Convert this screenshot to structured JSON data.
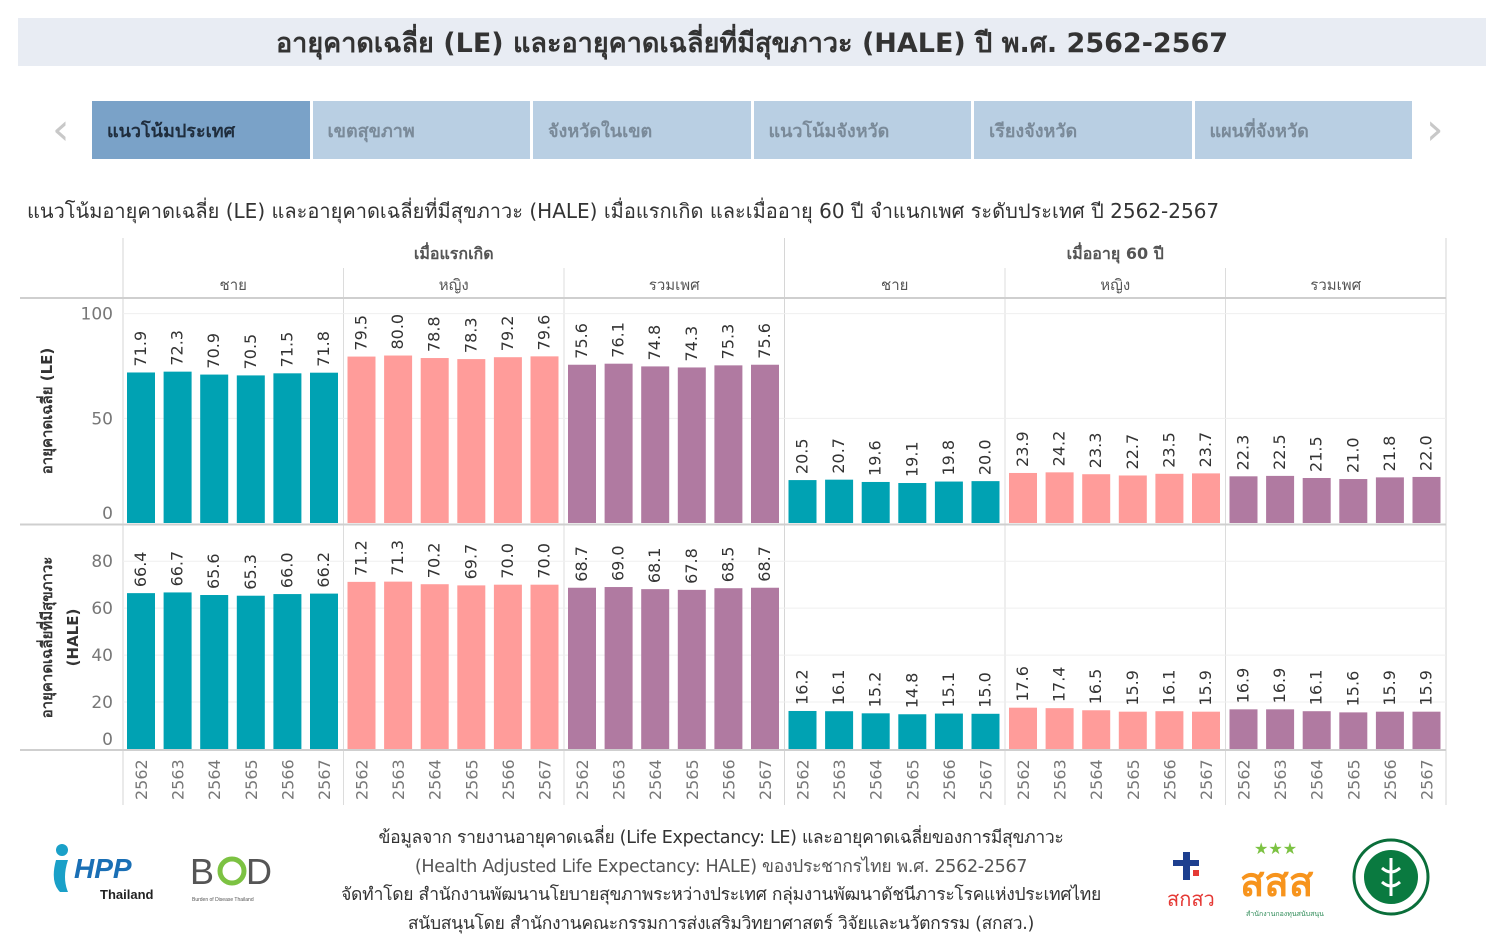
{
  "title": "อายุคาดเฉลี่ย (LE) และอายุคาดเฉลี่ยที่มีสุขภาวะ (HALE) ปี พ.ศ. 2562-2567",
  "tabs": [
    {
      "label": "แนวโน้มประเทศ",
      "active": true
    },
    {
      "label": "เขตสุขภาพ",
      "active": false
    },
    {
      "label": "จังหวัดในเขต",
      "active": false
    },
    {
      "label": "แนวโน้มจังหวัด",
      "active": false
    },
    {
      "label": "เรียงจังหวัด",
      "active": false
    },
    {
      "label": "แผนที่จังหวัด",
      "active": false
    }
  ],
  "nav": {
    "prev_icon": "chevron-left-icon",
    "next_icon": "chevron-right-icon",
    "prev": "‹",
    "next": "›"
  },
  "subtitle": "แนวโน้มอายุคาดเฉลี่ย (LE) และอายุคาดเฉลี่ยที่มีสุขภาวะ (HALE) เมื่อแรกเกิด และเมื่ออายุ 60 ปี จำแนกเพศ ระดับประเทศ ปี 2562-2567",
  "colors": {
    "ชาย": "#00a2b3",
    "หญิง": "#ff9c9a",
    "รวมเพศ": "#b07aa1"
  },
  "chart_data": {
    "type": "bar",
    "grid": true,
    "column_groups": [
      {
        "label": "เมื่อแรกเกิด",
        "sexes": [
          "ชาย",
          "หญิง",
          "รวมเพศ"
        ]
      },
      {
        "label": "เมื่ออายุ 60 ปี",
        "sexes": [
          "ชาย",
          "หญิง",
          "รวมเพศ"
        ]
      }
    ],
    "categories": [
      "2562",
      "2563",
      "2564",
      "2565",
      "2566",
      "2567"
    ],
    "rows": [
      {
        "ylabel": "อายุคาดเฉลี่ย (LE)",
        "ylabel2": "",
        "ticks": [
          0,
          50,
          100
        ],
        "ylim": [
          0,
          107
        ],
        "series": [
          {
            "age": "เมื่อแรกเกิด",
            "sex": "ชาย",
            "values": [
              71.9,
              72.3,
              70.9,
              70.5,
              71.5,
              71.8
            ]
          },
          {
            "age": "เมื่อแรกเกิด",
            "sex": "หญิง",
            "values": [
              79.5,
              80.0,
              78.8,
              78.3,
              79.2,
              79.6
            ]
          },
          {
            "age": "เมื่อแรกเกิด",
            "sex": "รวมเพศ",
            "values": [
              75.6,
              76.1,
              74.8,
              74.3,
              75.3,
              75.6
            ]
          },
          {
            "age": "เมื่ออายุ 60 ปี",
            "sex": "ชาย",
            "values": [
              20.5,
              20.7,
              19.6,
              19.1,
              19.8,
              20.0
            ]
          },
          {
            "age": "เมื่ออายุ 60 ปี",
            "sex": "หญิง",
            "values": [
              23.9,
              24.2,
              23.3,
              22.7,
              23.5,
              23.7
            ]
          },
          {
            "age": "เมื่ออายุ 60 ปี",
            "sex": "รวมเพศ",
            "values": [
              22.3,
              22.5,
              21.5,
              21.0,
              21.8,
              22.0
            ]
          }
        ]
      },
      {
        "ylabel": "อายุคาดเฉลี่ยที่มีสุขภาวะ",
        "ylabel2": "(HALE)",
        "ticks": [
          0,
          20,
          40,
          60,
          80
        ],
        "ylim": [
          0,
          95
        ],
        "series": [
          {
            "age": "เมื่อแรกเกิด",
            "sex": "ชาย",
            "values": [
              66.4,
              66.7,
              65.6,
              65.3,
              66.0,
              66.2
            ]
          },
          {
            "age": "เมื่อแรกเกิด",
            "sex": "หญิง",
            "values": [
              71.2,
              71.3,
              70.2,
              69.7,
              70.0,
              70.0
            ]
          },
          {
            "age": "เมื่อแรกเกิด",
            "sex": "รวมเพศ",
            "values": [
              68.7,
              69.0,
              68.1,
              67.8,
              68.5,
              68.7
            ]
          },
          {
            "age": "เมื่ออายุ 60 ปี",
            "sex": "ชาย",
            "values": [
              16.2,
              16.1,
              15.2,
              14.8,
              15.1,
              15.0
            ]
          },
          {
            "age": "เมื่ออายุ 60 ปี",
            "sex": "หญิง",
            "values": [
              17.6,
              17.4,
              16.5,
              15.9,
              16.1,
              15.9
            ]
          },
          {
            "age": "เมื่ออายุ 60 ปี",
            "sex": "รวมเพศ",
            "values": [
              16.9,
              16.9,
              16.1,
              15.6,
              15.9,
              15.9
            ]
          }
        ]
      }
    ]
  },
  "footer": {
    "line1": "ข้อมูลจาก รายงานอายุคาดเฉลี่ย (Life Expectancy: LE) และอายุคาดเฉลี่ยของการมีสุขภาวะ",
    "line2": "(Health Adjusted Life Expectancy: HALE) ของประชากรไทย พ.ศ. 2562-2567",
    "line3": "จัดทำโดย สำนักงานพัฒนานโยบายสุขภาพระหว่างประเทศ กลุ่มงานพัฒนาดัชนีภาระโรคแห่งประเทศไทย",
    "line4": "สนับสนุนโดย สำนักงานคณะกรรมการส่งเสริมวิทยาศาสตร์ วิจัยและนวัตกรรม (สกสว.)"
  },
  "logos": {
    "ihpp": "IHPP Thailand",
    "bod": "BOD",
    "bod_sub": "Burden of Disease Thailand",
    "tsri": "สกสว",
    "thaihealth": "สสส",
    "moph": "MINISTRY OF PUBLIC HEALTH"
  }
}
